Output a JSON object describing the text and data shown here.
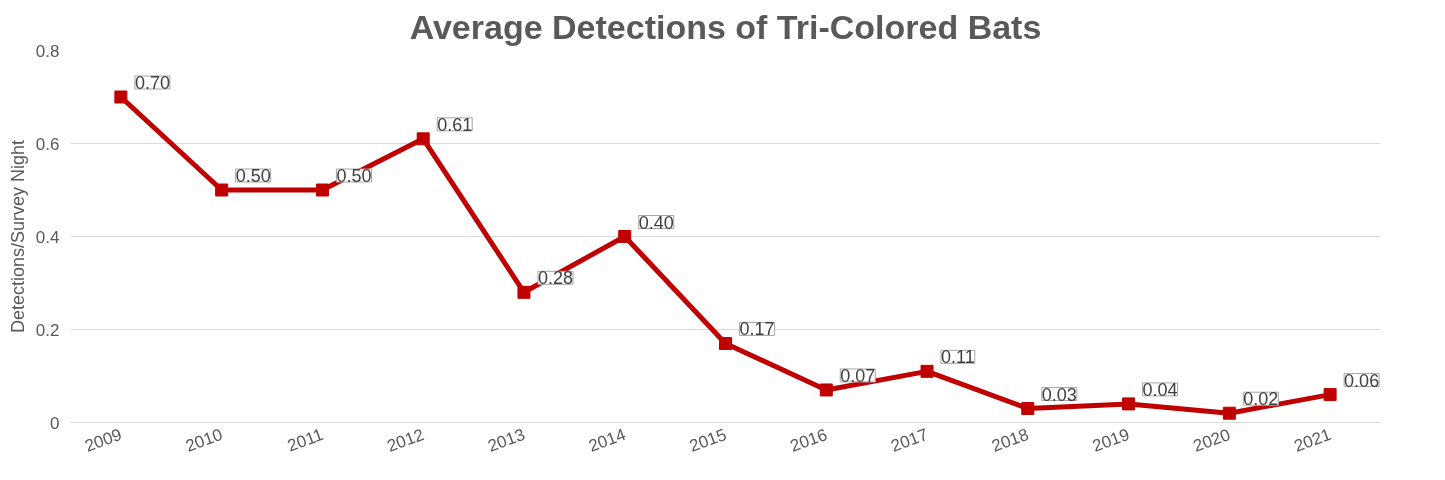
{
  "chart_data": {
    "type": "line",
    "title": "Average Detections of Tri-Colored Bats",
    "ylabel": "Detections/Survey Night",
    "categories": [
      "2009",
      "2010",
      "2011",
      "2012",
      "2013",
      "2014",
      "2015",
      "2016",
      "2017",
      "2018",
      "2019",
      "2020",
      "2021"
    ],
    "series": [
      {
        "color": "#c00000",
        "values": [
          0.7,
          0.5,
          0.5,
          0.61,
          0.28,
          0.4,
          0.17,
          0.07,
          0.11,
          0.03,
          0.04,
          0.02,
          0.06
        ],
        "value_labels": [
          "0.70",
          "0.50",
          "0.50",
          "0.61",
          "0.28",
          "0.40",
          "0.17",
          "0.07",
          "0.11",
          "0.03",
          "0.04",
          "0.02",
          "0.06"
        ]
      }
    ],
    "ylim": [
      0,
      0.8
    ],
    "yticks": [
      0,
      0.2,
      0.4,
      0.6,
      0.8
    ],
    "grid": "y",
    "marker": "square",
    "line_style": "solid"
  }
}
